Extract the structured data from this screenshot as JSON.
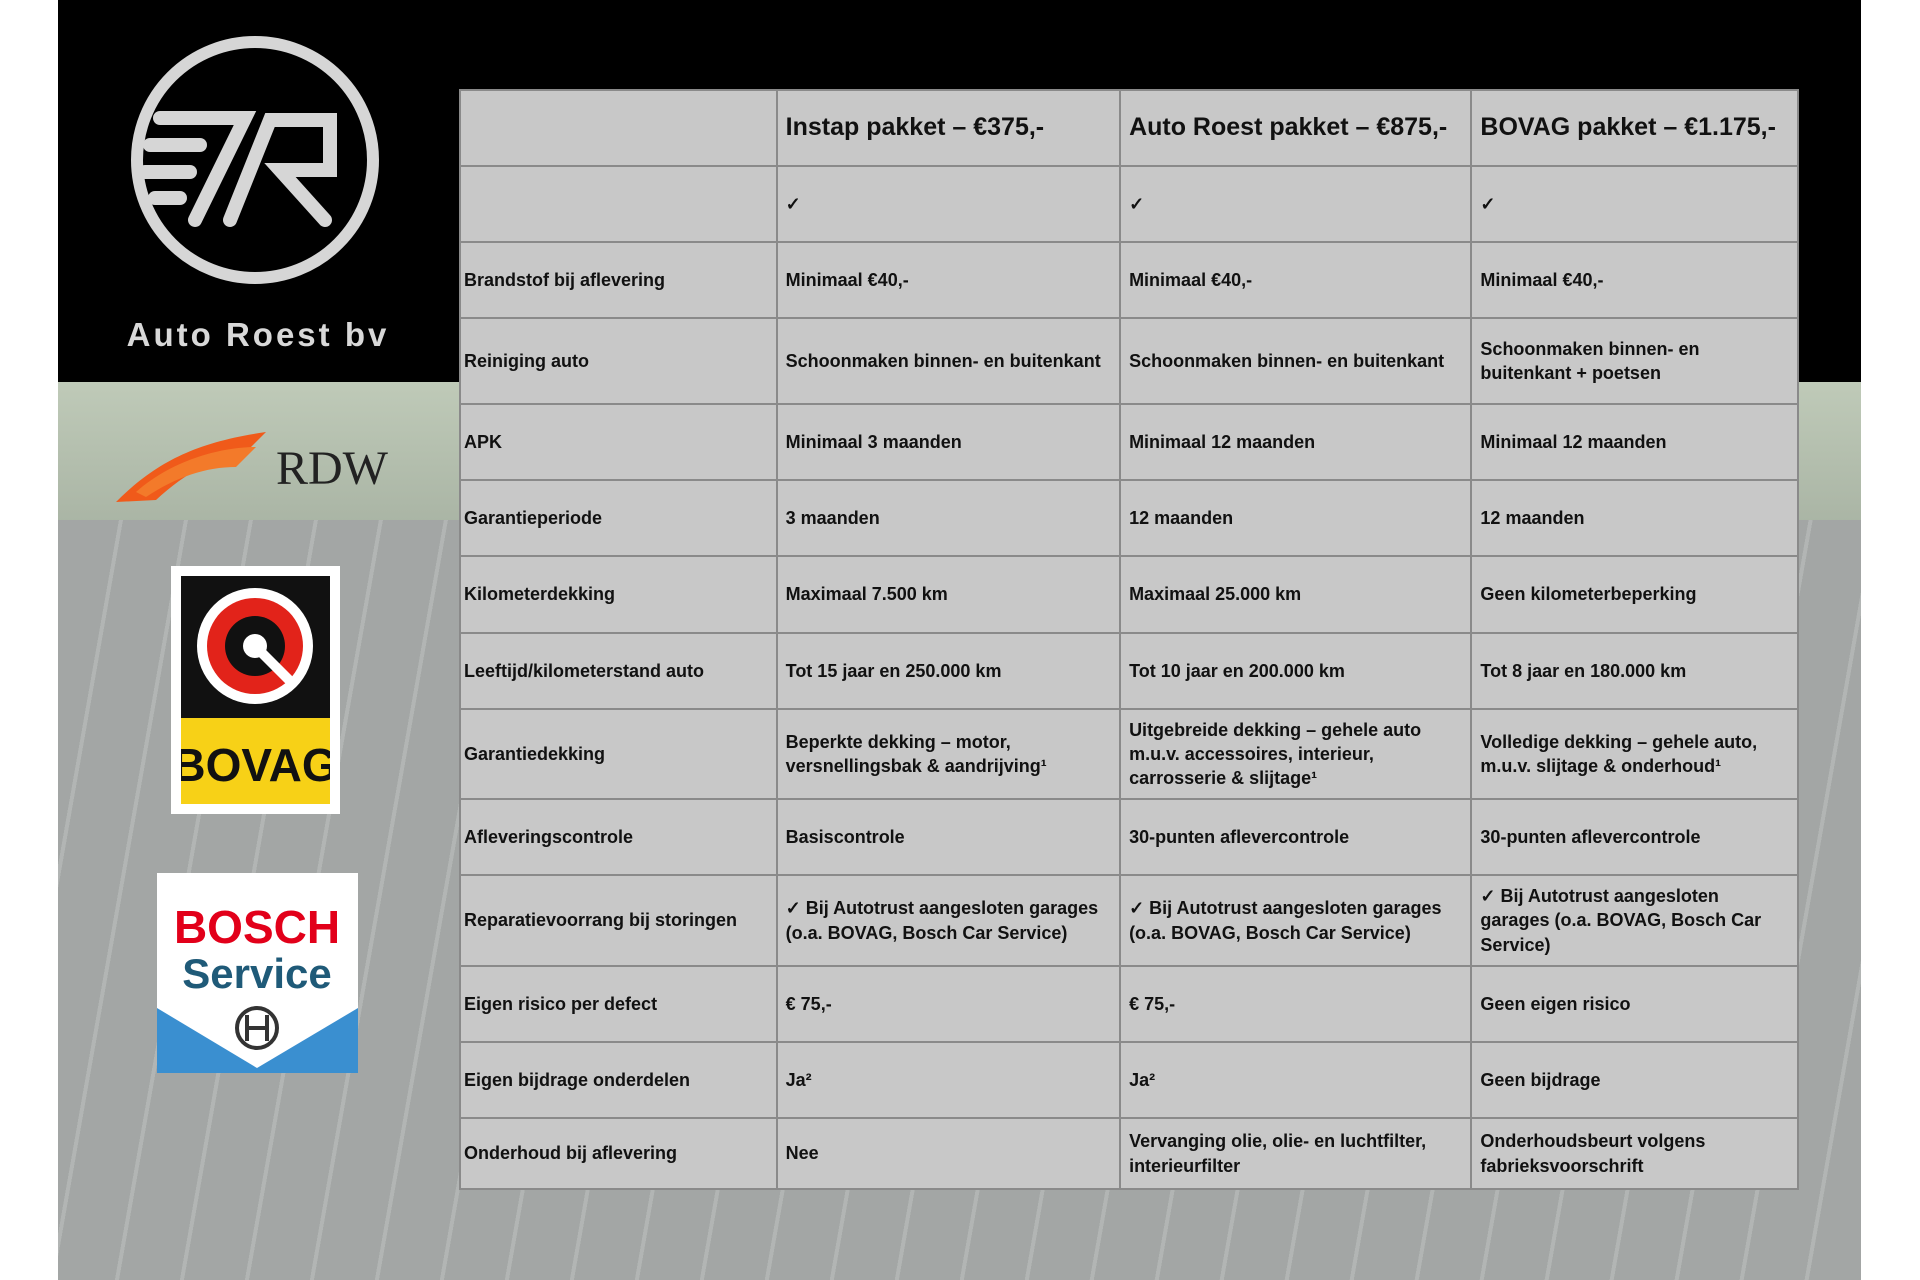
{
  "brand": {
    "name": "Auto Roest bv",
    "logos": [
      "RDW",
      "BOVAG",
      "BOSCH Service"
    ]
  },
  "table": {
    "headers": [
      "",
      "Instap pakket – €375,-",
      "Auto Roest pakket – €875,-",
      "BOVAG pakket – €1.175,-"
    ],
    "rows": [
      [
        "",
        "✓",
        "✓",
        "✓"
      ],
      [
        "Brandstof bij aflevering",
        "Minimaal €40,-",
        "Minimaal €40,-",
        "Minimaal €40,-"
      ],
      [
        "Reiniging auto",
        "Schoonmaken binnen- en buitenkant",
        "Schoonmaken binnen- en buitenkant",
        "Schoonmaken binnen- en buitenkant + poetsen"
      ],
      [
        "APK",
        "Minimaal 3 maanden",
        "Minimaal 12 maanden",
        "Minimaal 12 maanden"
      ],
      [
        "Garantieperiode",
        "3 maanden",
        "12 maanden",
        "12 maanden"
      ],
      [
        "Kilometerdekking",
        "Maximaal 7.500 km",
        "Maximaal 25.000 km",
        "Geen kilometerbeperking"
      ],
      [
        "Leeftijd/kilometerstand auto",
        "Tot 15 jaar en 250.000 km",
        "Tot 10 jaar en 200.000 km",
        "Tot 8 jaar en 180.000 km"
      ],
      [
        "Garantiedekking",
        "Beperkte dekking – motor, versnellingsbak & aandrijving¹",
        "Uitgebreide dekking – gehele auto m.u.v. accessoires, interieur, carrosserie & slijtage¹",
        "Volledige dekking – gehele auto, m.u.v. slijtage & onderhoud¹"
      ],
      [
        "Afleveringscontrole",
        "Basiscontrole",
        "30-punten aflevercontrole",
        "30-punten aflevercontrole"
      ],
      [
        "Reparatievoorrang bij storingen",
        "✓ Bij Autotrust aangesloten garages (o.a. BOVAG, Bosch Car Service)",
        "✓ Bij Autotrust aangesloten garages (o.a. BOVAG, Bosch Car Service)",
        "✓ Bij Autotrust aangesloten garages (o.a. BOVAG, Bosch Car Service)"
      ],
      [
        "Eigen risico per defect",
        "€ 75,-",
        "€ 75,-",
        "Geen eigen risico"
      ],
      [
        "Eigen bijdrage onderdelen",
        "Ja²",
        "Ja²",
        "Geen bijdrage"
      ],
      [
        "Onderhoud bij aflevering",
        "Nee",
        "Vervanging olie, olie- en luchtfilter, interieurfilter",
        "Onderhoudsbeurt volgens fabrieksvoorschrift"
      ]
    ]
  }
}
